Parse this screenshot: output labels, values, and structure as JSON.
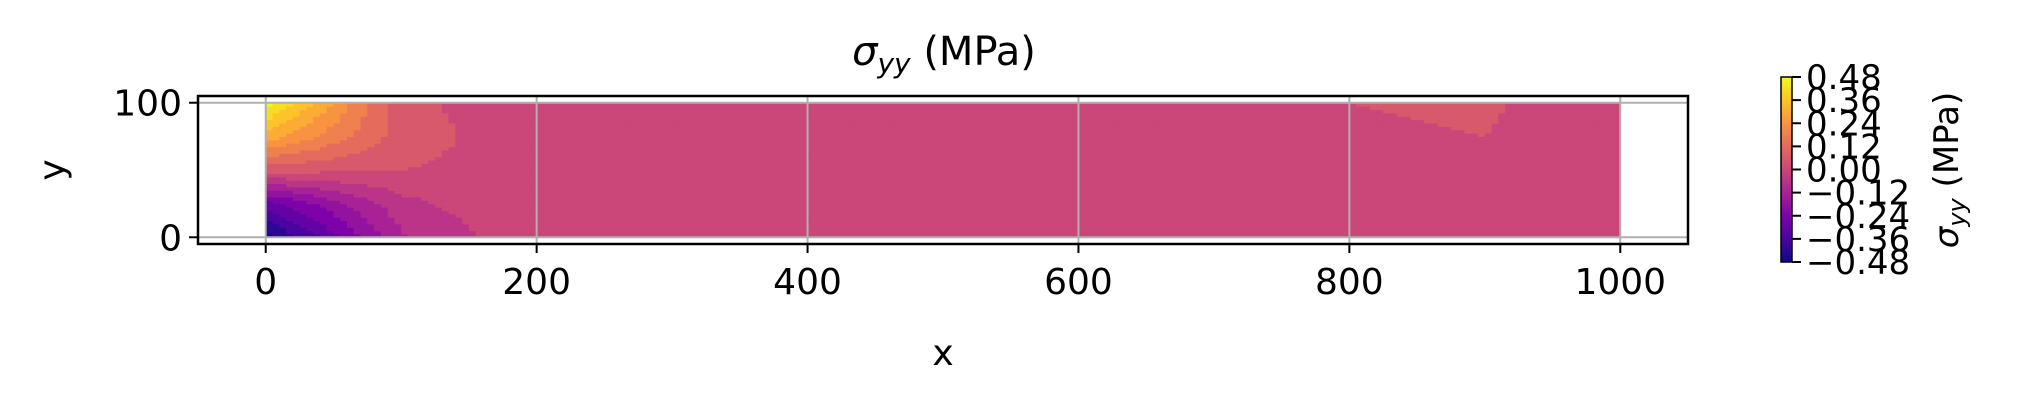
{
  "chart_data": {
    "type": "heatmap",
    "title": "σ_yy (MPa)",
    "title_main": "σ",
    "title_sub": "yy",
    "title_rest": " (MPa)",
    "xlabel": "x",
    "ylabel": "y",
    "xlim": [
      -50,
      1050
    ],
    "ylim": [
      -5,
      105
    ],
    "xticks": [
      0,
      200,
      400,
      600,
      800,
      1000
    ],
    "yticks": [
      0,
      100
    ],
    "grid": true,
    "colormap": "plasma",
    "colorbar": {
      "label_main": "σ",
      "label_sub": "yy",
      "label_rest": " (MPa)",
      "range": [
        -0.48,
        0.48
      ],
      "ticks": [
        0.48,
        0.36,
        0.24,
        0.12,
        0.0,
        -0.12,
        -0.24,
        -0.36,
        -0.48
      ],
      "tick_labels": [
        "0.48",
        "0.36",
        "0.24",
        "0.12",
        "0.00",
        "−0.12",
        "−0.24",
        "−0.36",
        "−0.48"
      ]
    },
    "field": {
      "domain_x": [
        0,
        1000
      ],
      "domain_y": [
        0,
        100
      ],
      "x": [
        0,
        100,
        200,
        300,
        400,
        500,
        600,
        700,
        800,
        900,
        1000
      ],
      "y": [
        0,
        25,
        50,
        75,
        100
      ],
      "values": [
        [
          -0.48,
          -0.1,
          0.02,
          0.02,
          0.02,
          0.02,
          0.02,
          0.02,
          0.02,
          -0.03,
          0.02
        ],
        [
          -0.3,
          -0.05,
          0.03,
          0.02,
          0.02,
          0.02,
          0.02,
          0.02,
          -0.01,
          -0.02,
          0.02
        ],
        [
          0.05,
          0.03,
          0.0,
          0.01,
          0.01,
          0.01,
          0.01,
          0.0,
          0.0,
          0.01,
          0.02
        ],
        [
          0.3,
          0.06,
          -0.01,
          -0.01,
          -0.01,
          -0.01,
          -0.01,
          -0.01,
          0.02,
          0.03,
          -0.01
        ],
        [
          0.48,
          0.05,
          -0.02,
          -0.02,
          -0.02,
          -0.02,
          -0.02,
          -0.02,
          0.03,
          0.04,
          -0.02
        ]
      ]
    }
  }
}
